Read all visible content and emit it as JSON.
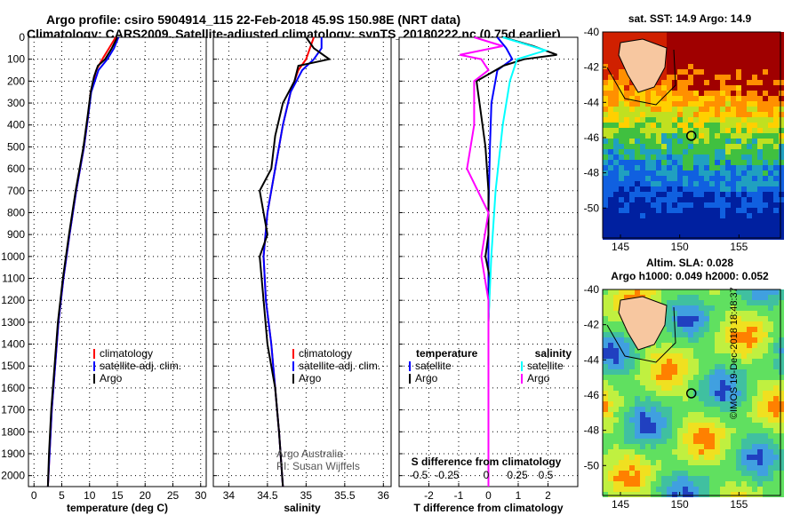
{
  "header": {
    "line1": "Argo profile: csiro 5904914_115 22-Feb-2018 45.9S 150.98E (NRT data)",
    "line2": "Climatology: CARS2009. Satellite-adjusted climatology: synTS_20180222.nc (0.75d earlier)"
  },
  "colors": {
    "climatology": "#ff0000",
    "satellite": "#0000ff",
    "argo": "#000000",
    "s_satellite": "#00ffff",
    "s_argo": "#ff00ff"
  },
  "chart_data": [
    {
      "type": "line",
      "name": "temperature",
      "xlabel": "temperature (deg C)",
      "ylabel": "",
      "xlim": [
        -1,
        31
      ],
      "ylim": [
        2050,
        0
      ],
      "xticks": [
        0,
        5,
        10,
        15,
        20,
        25,
        30
      ],
      "yticks": [
        0,
        100,
        200,
        300,
        400,
        500,
        600,
        700,
        800,
        900,
        1000,
        1100,
        1200,
        1300,
        1400,
        1500,
        1600,
        1700,
        1800,
        1900,
        2000
      ],
      "legend": [
        "climatology",
        "satellite-adj. clim.",
        "Argo"
      ],
      "series": [
        {
          "name": "climatology",
          "depth": [
            0,
            50,
            100,
            150,
            250,
            350,
            500,
            700,
            900,
            1100,
            1300,
            1500,
            1700,
            1900,
            2050
          ],
          "values": [
            14.7,
            13.5,
            12.3,
            11.2,
            10.2,
            9.8,
            9.0,
            7.6,
            6.4,
            5.3,
            4.4,
            3.8,
            3.2,
            2.8,
            2.5
          ]
        },
        {
          "name": "satellite-adj. clim.",
          "depth": [
            0,
            50,
            100,
            150,
            250,
            350,
            500,
            700,
            900,
            1100,
            1300,
            1500,
            1700,
            1900,
            2050
          ],
          "values": [
            15.2,
            14.4,
            13.2,
            11.6,
            10.3,
            9.8,
            9.0,
            7.6,
            6.4,
            5.3,
            4.4,
            3.8,
            3.2,
            2.8,
            2.5
          ]
        },
        {
          "name": "Argo",
          "depth": [
            0,
            50,
            100,
            130,
            180,
            250,
            350,
            500,
            700,
            900,
            1100,
            1300,
            1500,
            1700,
            1900,
            2050
          ],
          "values": [
            15.0,
            14.0,
            12.8,
            11.5,
            10.8,
            10.2,
            9.7,
            8.9,
            7.5,
            6.3,
            5.2,
            4.3,
            3.7,
            3.1,
            2.7,
            2.5
          ]
        }
      ]
    },
    {
      "type": "line",
      "name": "salinity",
      "xlabel": "salinity",
      "xlim": [
        33.8,
        36.1
      ],
      "ylim": [
        2050,
        0
      ],
      "xticks": [
        34,
        34.5,
        35,
        35.5,
        36
      ],
      "legend": [
        "climatology",
        "satellite-adj. clim.",
        "Argo"
      ],
      "annotation": [
        "Argo Australia",
        "PI: Susan Wijffels"
      ],
      "series": [
        {
          "name": "climatology",
          "depth": [
            0,
            50,
            100,
            150,
            250,
            400,
            600,
            800,
            1000,
            1200,
            1400,
            1600,
            1800,
            2050
          ],
          "values": [
            35.1,
            35.05,
            35.0,
            34.9,
            34.8,
            34.7,
            34.6,
            34.5,
            34.45,
            34.48,
            34.55,
            34.6,
            34.65,
            34.7
          ]
        },
        {
          "name": "satellite-adj. clim.",
          "depth": [
            0,
            50,
            100,
            150,
            250,
            400,
            600,
            800,
            1000,
            1200,
            1400,
            1600,
            1800,
            2050
          ],
          "values": [
            35.2,
            35.2,
            35.1,
            34.95,
            34.8,
            34.7,
            34.6,
            34.5,
            34.45,
            34.48,
            34.55,
            34.6,
            34.65,
            34.7
          ]
        },
        {
          "name": "Argo",
          "depth": [
            0,
            50,
            100,
            130,
            200,
            300,
            450,
            600,
            700,
            800,
            900,
            1000,
            1200,
            1400,
            1600,
            1800,
            2050
          ],
          "values": [
            35.0,
            35.1,
            35.3,
            34.9,
            34.85,
            34.7,
            34.6,
            34.55,
            34.4,
            34.45,
            34.5,
            34.4,
            34.45,
            34.5,
            34.6,
            34.65,
            34.7
          ]
        }
      ]
    },
    {
      "type": "line",
      "name": "difference",
      "xlabel": "T difference from climatology",
      "xlabel2": "S difference from climatology",
      "xlim": [
        -3,
        3
      ],
      "ylim": [
        2050,
        0
      ],
      "xticks": [
        -2,
        -1,
        0,
        1,
        2
      ],
      "xticks2": [
        "-0.5",
        "-0.25",
        "0",
        "0.25",
        "0.5"
      ],
      "legend_t": {
        "title": "temperature",
        "items": [
          "satellite",
          "Argo"
        ]
      },
      "legend_s": {
        "title": "salinity",
        "items": [
          "satellite",
          "Argo"
        ]
      },
      "series": [
        {
          "name": "T satellite",
          "depth": [
            0,
            50,
            100,
            150,
            300,
            500,
            800,
            1000,
            1300,
            1600,
            2050
          ],
          "values": [
            0.3,
            0.6,
            0.8,
            0.3,
            0.1,
            0.05,
            0.0,
            0.0,
            0.0,
            0.0,
            0.0
          ]
        },
        {
          "name": "T Argo",
          "depth": [
            0,
            40,
            80,
            100,
            130,
            200,
            300,
            500,
            700,
            900,
            1000,
            1100,
            1300,
            1500,
            1800,
            2050
          ],
          "values": [
            0.5,
            1.5,
            2.3,
            1.2,
            0.5,
            -0.4,
            -0.3,
            -0.1,
            0.0,
            0.0,
            -0.1,
            0.05,
            0.0,
            0.0,
            0.0,
            0.0
          ]
        },
        {
          "name": "S satellite",
          "depth": [
            0,
            60,
            100,
            200,
            400,
            700,
            1000,
            1300,
            1600,
            2050
          ],
          "values": [
            0.1,
            0.4,
            0.2,
            0.15,
            0.1,
            0.05,
            0.02,
            0.0,
            0.0,
            0.0
          ]
        },
        {
          "name": "S Argo",
          "depth": [
            0,
            40,
            80,
            100,
            150,
            200,
            400,
            600,
            800,
            1000,
            1200,
            1400,
            1600,
            2050
          ],
          "values": [
            -0.1,
            0.1,
            -0.2,
            -0.05,
            0.0,
            -0.1,
            -0.1,
            -0.15,
            0.0,
            -0.05,
            0.0,
            0.0,
            0.0,
            0.0
          ]
        }
      ]
    },
    {
      "type": "heatmap",
      "name": "SST map",
      "title": "sat. SST: 14.9 Argo: 14.9",
      "xticks": [
        145,
        150,
        155
      ],
      "yticks": [
        -40,
        -42,
        -44,
        -46,
        -48,
        -50
      ],
      "xlim": [
        143.5,
        158.5
      ],
      "ylim": [
        -51.7,
        -40
      ]
    },
    {
      "type": "heatmap",
      "name": "SLA map",
      "title1": "Altim. SLA: 0.028",
      "title2": "Argo h1000: 0.049 h2000: 0.052",
      "xticks": [
        145,
        150,
        155
      ],
      "yticks": [
        -40,
        -42,
        -44,
        -46,
        -48,
        -50
      ],
      "xlim": [
        143.5,
        158.5
      ],
      "ylim": [
        -51.7,
        -40
      ]
    }
  ],
  "footer": {
    "credit": "©IMOS 19-Dec-2018 18:48:37"
  }
}
